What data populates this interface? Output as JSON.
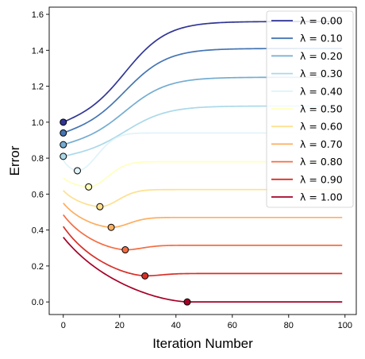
{
  "chart_data": {
    "type": "line",
    "xlabel": "Iteration Number",
    "ylabel": "Error",
    "xlim": [
      -5,
      104
    ],
    "ylim": [
      -0.07,
      1.64
    ],
    "xticks": [
      0,
      20,
      40,
      60,
      80,
      100
    ],
    "yticks": [
      0.0,
      0.2,
      0.4,
      0.6,
      0.8,
      1.0,
      1.2,
      1.4,
      1.6
    ],
    "xtick_labels": [
      "0",
      "20",
      "40",
      "60",
      "80",
      "100"
    ],
    "ytick_labels": [
      "0.0",
      "0.2",
      "0.4",
      "0.6",
      "0.8",
      "1.0",
      "1.2",
      "1.4",
      "1.6"
    ],
    "grid": false,
    "legend_position": "top-right",
    "x_start": 0,
    "x_end": 99,
    "series": [
      {
        "name": "λ = 0.00",
        "color": "#313695",
        "start": 1.0,
        "min_x": 0,
        "min_y": 1.0,
        "end": 1.56
      },
      {
        "name": "λ = 0.10",
        "color": "#4575b4",
        "start": 0.94,
        "min_x": 0,
        "min_y": 0.94,
        "end": 1.41
      },
      {
        "name": "λ = 0.20",
        "color": "#74add1",
        "start": 0.875,
        "min_x": 0,
        "min_y": 0.875,
        "end": 1.25
      },
      {
        "name": "λ = 0.30",
        "color": "#abd9e9",
        "start": 0.81,
        "min_x": 0,
        "min_y": 0.81,
        "end": 1.09
      },
      {
        "name": "λ = 0.40",
        "color": "#e0f3f8",
        "start": 0.79,
        "min_x": 5,
        "min_y": 0.73,
        "end": 0.94
      },
      {
        "name": "λ = 0.50",
        "color": "#ffffbf",
        "start": 0.69,
        "min_x": 9,
        "min_y": 0.64,
        "end": 0.78
      },
      {
        "name": "λ = 0.60",
        "color": "#fee090",
        "start": 0.62,
        "min_x": 13,
        "min_y": 0.53,
        "end": 0.625
      },
      {
        "name": "λ = 0.70",
        "color": "#fdae61",
        "start": 0.55,
        "min_x": 17,
        "min_y": 0.415,
        "end": 0.47
      },
      {
        "name": "λ = 0.80",
        "color": "#f46d43",
        "start": 0.485,
        "min_x": 22,
        "min_y": 0.29,
        "end": 0.315
      },
      {
        "name": "λ = 0.90",
        "color": "#d73027",
        "start": 0.42,
        "min_x": 29,
        "min_y": 0.145,
        "end": 0.158
      },
      {
        "name": "λ = 1.00",
        "color": "#a50026",
        "start": 0.36,
        "min_x": 44,
        "min_y": 0.0,
        "end": 0.0
      }
    ]
  }
}
